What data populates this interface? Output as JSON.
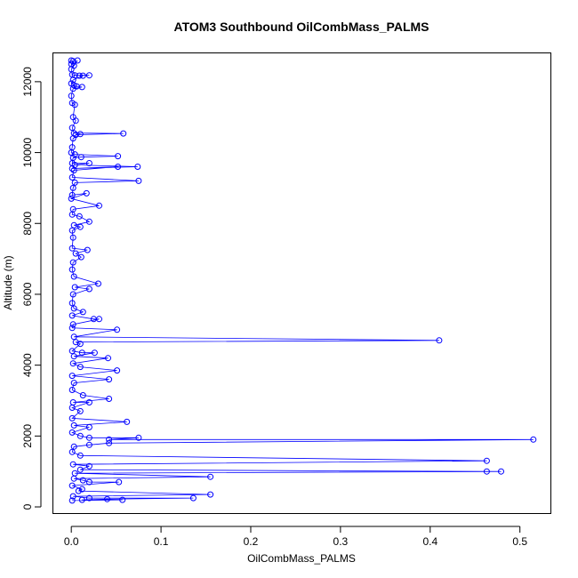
{
  "chart_data": {
    "type": "line",
    "title": "ATOM3 Southbound OilCombMass_PALMS",
    "xlabel": "OilCombMass_PALMS",
    "ylabel": "Altitude (m)",
    "xlim": [
      -0.02,
      0.535
    ],
    "ylim": [
      -200,
      12800
    ],
    "xticks": [
      0.0,
      0.1,
      0.2,
      0.3,
      0.4,
      0.5
    ],
    "xtick_labels": [
      "0.0",
      "0.1",
      "0.2",
      "0.3",
      "0.4",
      "0.5"
    ],
    "yticks": [
      0,
      2000,
      4000,
      6000,
      8000,
      10000,
      12000
    ],
    "ytick_labels": [
      "0",
      "2000",
      "4000",
      "6000",
      "8000",
      "10000",
      "12000"
    ],
    "grid": false,
    "legend": "none",
    "series": [
      {
        "color": "#0000ff",
        "marker": "open-circle",
        "points": [
          [
            0.0,
            12600
          ],
          [
            0.002,
            12580
          ],
          [
            0.0,
            12500
          ],
          [
            0.003,
            12450
          ],
          [
            0.007,
            12600
          ],
          [
            0.0,
            12350
          ],
          [
            0.001,
            12200
          ],
          [
            0.004,
            12180
          ],
          [
            0.02,
            12180
          ],
          [
            0.009,
            12170
          ],
          [
            0.013,
            12170
          ],
          [
            0.002,
            12050
          ],
          [
            0.0,
            11950
          ],
          [
            0.003,
            11900
          ],
          [
            0.006,
            11870
          ],
          [
            0.012,
            11850
          ],
          [
            0.002,
            11800
          ],
          [
            0.0,
            11600
          ],
          [
            0.001,
            11400
          ],
          [
            0.004,
            11350
          ],
          [
            0.002,
            11000
          ],
          [
            0.005,
            10900
          ],
          [
            0.001,
            10700
          ],
          [
            0.003,
            10550
          ],
          [
            0.058,
            10540
          ],
          [
            0.005,
            10500
          ],
          [
            0.01,
            10520
          ],
          [
            0.002,
            10400
          ],
          [
            0.001,
            10150
          ],
          [
            0.0,
            10000
          ],
          [
            0.004,
            9950
          ],
          [
            0.052,
            9900
          ],
          [
            0.011,
            9870
          ],
          [
            0.002,
            9850
          ],
          [
            0.001,
            9700
          ],
          [
            0.02,
            9700
          ],
          [
            0.004,
            9650
          ],
          [
            0.074,
            9600
          ],
          [
            0.001,
            9550
          ],
          [
            0.052,
            9600
          ],
          [
            0.003,
            9500
          ],
          [
            0.001,
            9300
          ],
          [
            0.075,
            9200
          ],
          [
            0.004,
            9150
          ],
          [
            0.002,
            9000
          ],
          [
            0.001,
            8800
          ],
          [
            0.017,
            8850
          ],
          [
            0.0,
            8700
          ],
          [
            0.031,
            8500
          ],
          [
            0.002,
            8400
          ],
          [
            0.001,
            8250
          ],
          [
            0.009,
            8200
          ],
          [
            0.02,
            8050
          ],
          [
            0.003,
            7950
          ],
          [
            0.01,
            7900
          ],
          [
            0.001,
            7800
          ],
          [
            0.002,
            7600
          ],
          [
            0.001,
            7300
          ],
          [
            0.018,
            7250
          ],
          [
            0.005,
            7150
          ],
          [
            0.011,
            7050
          ],
          [
            0.002,
            6900
          ],
          [
            0.001,
            6700
          ],
          [
            0.003,
            6500
          ],
          [
            0.03,
            6300
          ],
          [
            0.004,
            6200
          ],
          [
            0.02,
            6150
          ],
          [
            0.002,
            6000
          ],
          [
            0.001,
            5750
          ],
          [
            0.003,
            5600
          ],
          [
            0.013,
            5500
          ],
          [
            0.001,
            5400
          ],
          [
            0.025,
            5300
          ],
          [
            0.031,
            5300
          ],
          [
            0.002,
            5150
          ],
          [
            0.001,
            5050
          ],
          [
            0.051,
            5000
          ],
          [
            0.003,
            4800
          ],
          [
            0.41,
            4700
          ],
          [
            0.005,
            4650
          ],
          [
            0.01,
            4600
          ],
          [
            0.001,
            4400
          ],
          [
            0.012,
            4350
          ],
          [
            0.026,
            4350
          ],
          [
            0.003,
            4250
          ],
          [
            0.041,
            4200
          ],
          [
            0.002,
            4050
          ],
          [
            0.01,
            3950
          ],
          [
            0.051,
            3850
          ],
          [
            0.001,
            3700
          ],
          [
            0.042,
            3600
          ],
          [
            0.003,
            3500
          ],
          [
            0.001,
            3300
          ],
          [
            0.013,
            3150
          ],
          [
            0.042,
            3050
          ],
          [
            0.002,
            2950
          ],
          [
            0.02,
            2950
          ],
          [
            0.001,
            2800
          ],
          [
            0.01,
            2700
          ],
          [
            0.001,
            2500
          ],
          [
            0.062,
            2400
          ],
          [
            0.003,
            2300
          ],
          [
            0.02,
            2250
          ],
          [
            0.001,
            2100
          ],
          [
            0.01,
            2000
          ],
          [
            0.02,
            1950
          ],
          [
            0.075,
            1950
          ],
          [
            0.042,
            1900
          ],
          [
            0.515,
            1900
          ],
          [
            0.042,
            1800
          ],
          [
            0.02,
            1750
          ],
          [
            0.003,
            1700
          ],
          [
            0.001,
            1550
          ],
          [
            0.01,
            1450
          ],
          [
            0.463,
            1300
          ],
          [
            0.002,
            1200
          ],
          [
            0.02,
            1150
          ],
          [
            0.01,
            1050
          ],
          [
            0.463,
            1000
          ],
          [
            0.479,
            1000
          ],
          [
            0.004,
            950
          ],
          [
            0.155,
            850
          ],
          [
            0.003,
            800
          ],
          [
            0.013,
            750
          ],
          [
            0.02,
            700
          ],
          [
            0.053,
            700
          ],
          [
            0.001,
            600
          ],
          [
            0.012,
            500
          ],
          [
            0.008,
            450
          ],
          [
            0.155,
            350
          ],
          [
            0.002,
            300
          ],
          [
            0.02,
            250
          ],
          [
            0.136,
            250
          ],
          [
            0.04,
            220
          ],
          [
            0.012,
            200
          ],
          [
            0.057,
            200
          ],
          [
            0.001,
            180
          ]
        ]
      }
    ]
  }
}
